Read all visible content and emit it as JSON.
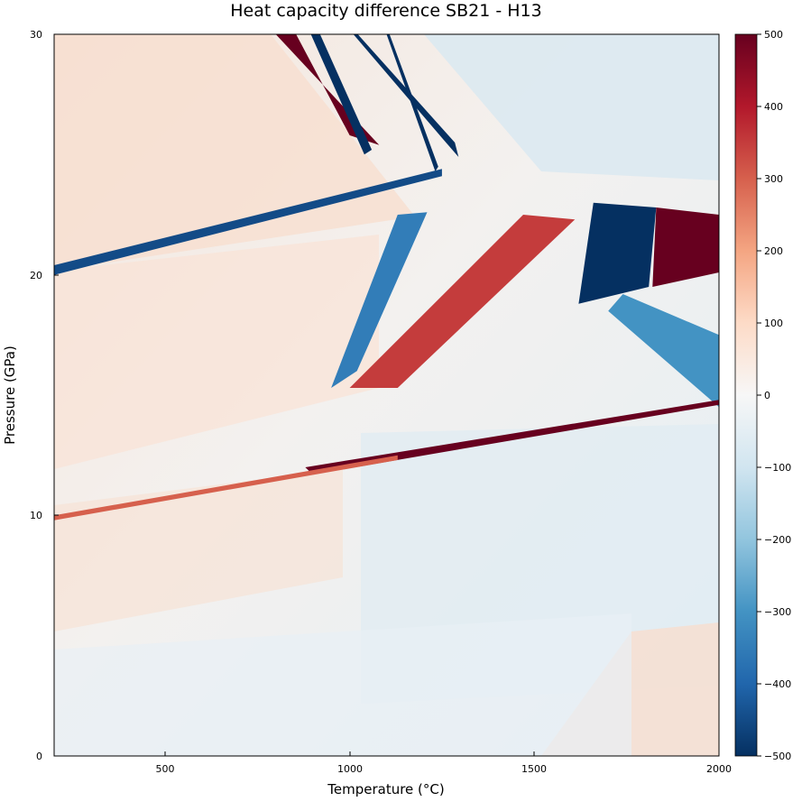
{
  "chart_data": {
    "type": "heatmap",
    "title": "Heat capacity difference SB21 - H13",
    "xlabel": "Temperature (°C)",
    "ylabel": "Pressure (GPa)",
    "xlim": [
      200,
      2000
    ],
    "ylim": [
      0,
      30
    ],
    "x_ticks": [
      500,
      1000,
      1500,
      2000
    ],
    "x_tick_labels": [
      "500",
      "1000",
      "1500",
      "2000"
    ],
    "y_ticks": [
      0,
      10,
      20,
      30
    ],
    "y_tick_labels": [
      "0",
      "10",
      "20",
      "30"
    ],
    "colorbar": {
      "colormap": "RdBu_r",
      "range": [
        -500,
        500
      ],
      "ticks": [
        500,
        400,
        300,
        200,
        100,
        0,
        -100,
        -200,
        -300,
        -400,
        -500
      ],
      "tick_labels": [
        "500",
        "400",
        "300",
        "200",
        "100",
        "0",
        "−100",
        "−200",
        "−300",
        "−400",
        "−500"
      ]
    },
    "features": [
      {
        "name": "upper-left red wedge",
        "value": 500,
        "polygon": [
          [
            800,
            30
          ],
          [
            855,
            30
          ],
          [
            1000,
            25.8
          ],
          [
            1080,
            25.4
          ]
        ]
      },
      {
        "name": "upper-left blue streak",
        "value": -500,
        "polygon": [
          [
            895,
            30
          ],
          [
            920,
            30
          ],
          [
            1060,
            25.2
          ],
          [
            1040,
            25.0
          ]
        ]
      },
      {
        "name": "blue streak 2",
        "value": -500,
        "polygon": [
          [
            1010,
            30
          ],
          [
            1022,
            30
          ],
          [
            1285,
            25.5
          ],
          [
            1295,
            24.9
          ],
          [
            1255,
            25.6
          ]
        ]
      },
      {
        "name": "blue streak 3",
        "value": -500,
        "polygon": [
          [
            1100,
            30
          ],
          [
            1108,
            30
          ],
          [
            1240,
            24.5
          ],
          [
            1232,
            24.3
          ]
        ]
      },
      {
        "name": "blue band ~22GPa",
        "value": -450,
        "polygon": [
          [
            200,
            20.4
          ],
          [
            1250,
            24.4
          ],
          [
            1250,
            24.1
          ],
          [
            200,
            20.0
          ]
        ]
      },
      {
        "name": "central blue wedge",
        "value": -350,
        "polygon": [
          [
            950,
            15.3
          ],
          [
            1130,
            22.5
          ],
          [
            1210,
            22.6
          ],
          [
            1020,
            16.0
          ]
        ]
      },
      {
        "name": "central red wedge",
        "value": 350,
        "polygon": [
          [
            1000,
            15.3
          ],
          [
            1130,
            15.3
          ],
          [
            1610,
            22.3
          ],
          [
            1470,
            22.5
          ]
        ]
      },
      {
        "name": "dark blue block",
        "value": -500,
        "polygon": [
          [
            1660,
            23.0
          ],
          [
            1830,
            22.8
          ],
          [
            1810,
            19.5
          ],
          [
            1620,
            18.8
          ]
        ]
      },
      {
        "name": "dark red block",
        "value": 500,
        "polygon": [
          [
            1830,
            22.8
          ],
          [
            2000,
            22.5
          ],
          [
            2000,
            20.1
          ],
          [
            1820,
            19.5
          ]
        ]
      },
      {
        "name": "blue fan",
        "value": -300,
        "polygon": [
          [
            1740,
            19.2
          ],
          [
            2000,
            17.5
          ],
          [
            2000,
            14.5
          ],
          [
            1700,
            18.5
          ]
        ]
      },
      {
        "name": "red line ~13GPa",
        "value": 500,
        "polygon": [
          [
            880,
            12.0
          ],
          [
            2000,
            14.8
          ],
          [
            2000,
            14.6
          ],
          [
            900,
            11.7
          ]
        ]
      },
      {
        "name": "red line ~11GPa",
        "value": 300,
        "polygon": [
          [
            200,
            10.0
          ],
          [
            1130,
            12.5
          ],
          [
            1130,
            12.3
          ],
          [
            200,
            9.8
          ]
        ]
      }
    ]
  }
}
